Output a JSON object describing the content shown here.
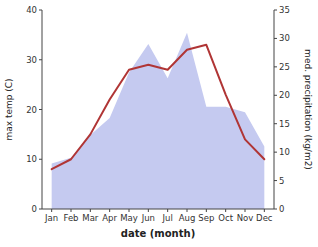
{
  "chart_data": {
    "type": "line",
    "xlabel": "date (month)",
    "ylabel": "max temp (C)",
    "y2label": "med. precipitation (kg/m2)",
    "categories": [
      "Jan",
      "Feb",
      "Mar",
      "Apr",
      "May",
      "Jun",
      "Jul",
      "Aug",
      "Sep",
      "Oct",
      "Nov",
      "Dec"
    ],
    "series": [
      {
        "type": "area",
        "axis": "y2",
        "color": "#c5caf0",
        "values": [
          8,
          9,
          13,
          16,
          24,
          29,
          23,
          31,
          18,
          18,
          17,
          11
        ]
      },
      {
        "type": "line",
        "color": "#b03535",
        "values": [
          8,
          10,
          15,
          22,
          28,
          29,
          28,
          32,
          33,
          23,
          14,
          10
        ]
      }
    ],
    "ylim": [
      0,
      40
    ],
    "yticks": [
      0,
      10,
      20,
      30,
      40
    ],
    "y2lim": [
      0,
      35
    ],
    "y2ticks": [
      0,
      5,
      10,
      15,
      20,
      25,
      30,
      35
    ],
    "grid": false
  }
}
